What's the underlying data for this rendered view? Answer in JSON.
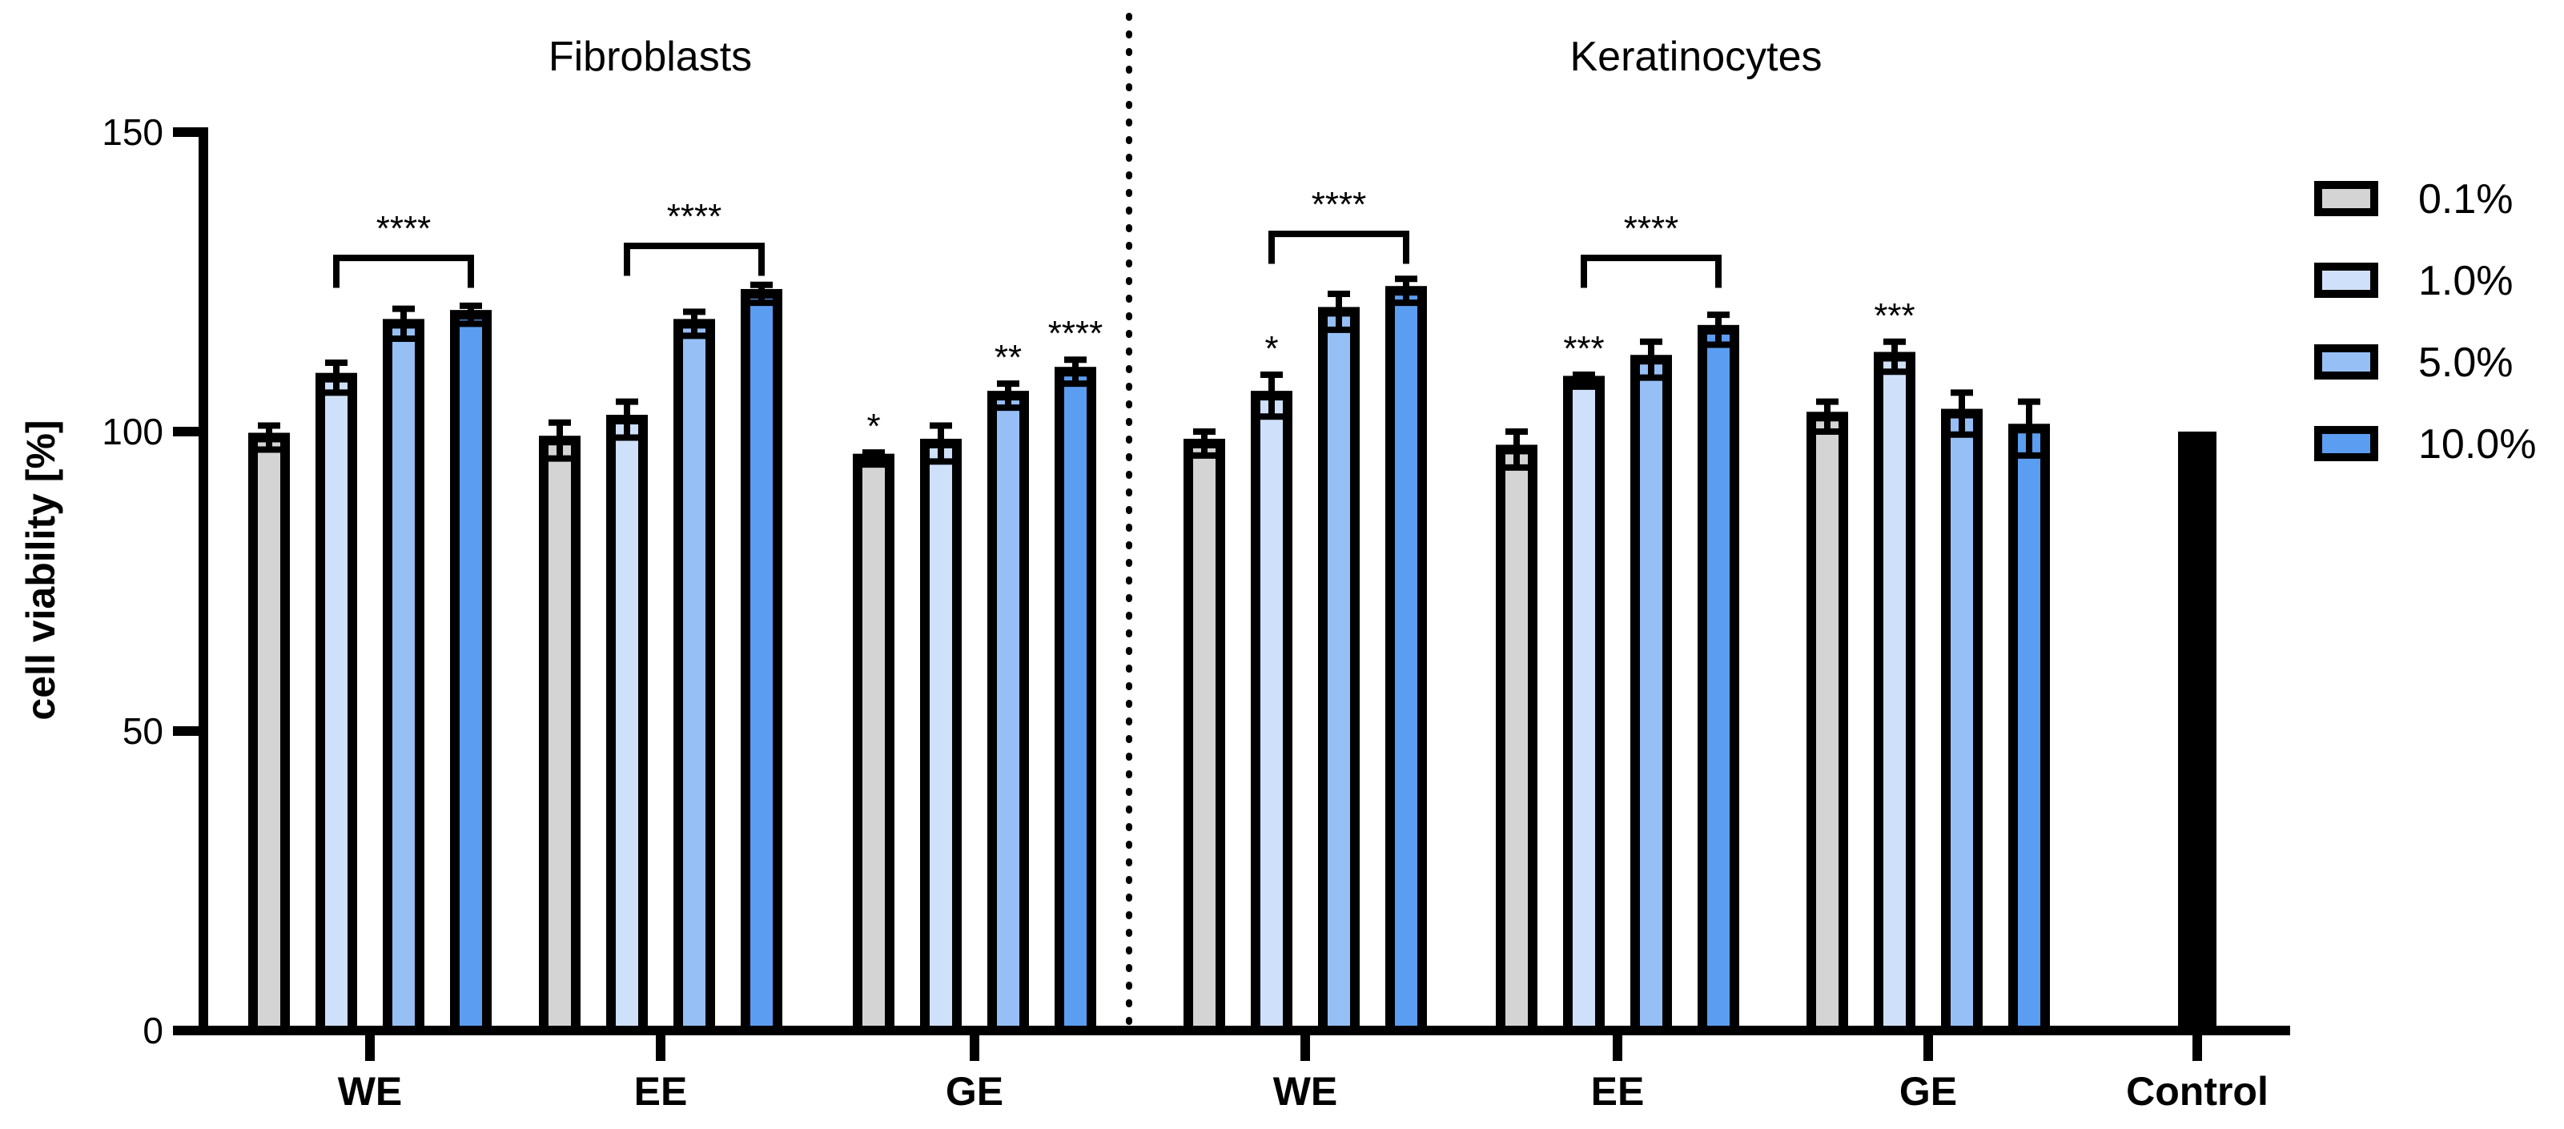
{
  "chart_data": {
    "type": "bar",
    "ylabel": "cell viability [%]",
    "ylim": [
      0,
      150
    ],
    "yticks": [
      0,
      50,
      100,
      150
    ],
    "panels": [
      "Fibroblasts",
      "Keratinocytes"
    ],
    "legend": {
      "position": "right",
      "entries": [
        {
          "name": "0.1%",
          "color": "#d4d4d4"
        },
        {
          "name": "1.0%",
          "color": "#cfe0fb"
        },
        {
          "name": "5.0%",
          "color": "#96bff5"
        },
        {
          "name": "10.0%",
          "color": "#5b9df0"
        }
      ]
    },
    "groups": [
      {
        "label": "WE",
        "panel": "Fibroblasts",
        "values": [
          99,
          109,
          118,
          119.5
        ],
        "errors": [
          2,
          2.5,
          2.5,
          1.5
        ],
        "stars": [
          "",
          "",
          "",
          ""
        ]
      },
      {
        "label": "EE",
        "panel": "Fibroblasts",
        "values": [
          98.5,
          102,
          118,
          123
        ],
        "errors": [
          3,
          3,
          2,
          1.5
        ],
        "stars": [
          "",
          "",
          "",
          ""
        ]
      },
      {
        "label": "GE",
        "panel": "Fibroblasts",
        "values": [
          95.5,
          98,
          106,
          110
        ],
        "errors": [
          1,
          3,
          2,
          2
        ],
        "stars": [
          "*",
          "",
          "**",
          "****"
        ]
      },
      {
        "label": "WE",
        "panel": "Keratinocytes",
        "values": [
          98,
          106,
          120,
          123.5
        ],
        "errors": [
          2,
          3.5,
          3,
          2
        ],
        "stars": [
          "",
          "*",
          "",
          ""
        ]
      },
      {
        "label": "EE",
        "panel": "Keratinocytes",
        "values": [
          97,
          108.5,
          112,
          117
        ],
        "errors": [
          3,
          1,
          3,
          2.5
        ],
        "stars": [
          "",
          "***",
          "",
          ""
        ]
      },
      {
        "label": "GE",
        "panel": "Keratinocytes",
        "values": [
          102.5,
          112.5,
          103,
          100.5
        ],
        "errors": [
          2.5,
          2.5,
          3.5,
          4.5
        ],
        "stars": [
          "",
          "***",
          "",
          ""
        ]
      }
    ],
    "brackets": [
      {
        "group": 0,
        "from": 1,
        "to": 3,
        "y": 129,
        "label": "****"
      },
      {
        "group": 1,
        "from": 1,
        "to": 3,
        "y": 131,
        "label": "****"
      },
      {
        "group": 3,
        "from": 1,
        "to": 3,
        "y": 133,
        "label": "****"
      },
      {
        "group": 4,
        "from": 1,
        "to": 3,
        "y": 129,
        "label": "****"
      }
    ],
    "control": {
      "label": "Control",
      "value": 100,
      "color": "#000000"
    }
  }
}
